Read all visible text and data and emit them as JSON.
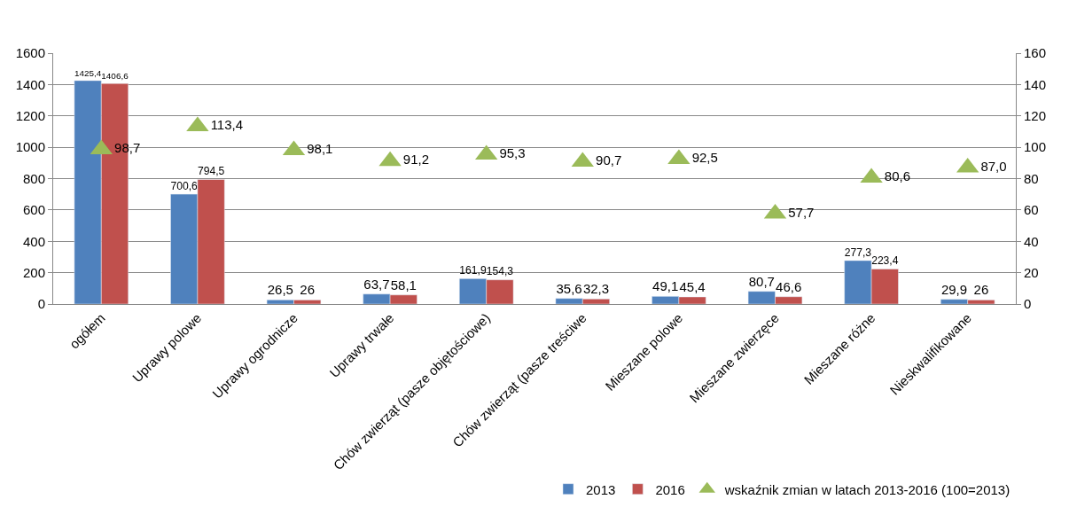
{
  "chart_data": {
    "type": "bar",
    "categories": [
      "ogółem",
      "Uprawy polowe",
      "Uprawy ogrodnicze",
      "Uprawy trwałe",
      "Chów zwierząt (pasze objętościowe)",
      "Chów zwierząt (pasze treściwe",
      "Mieszane polowe",
      "Mieszane zwierzęce",
      "Mieszane różne",
      "Nieskwalifikowane"
    ],
    "series": [
      {
        "name": "2013",
        "color": "#4f81bd",
        "values": [
          1425.4,
          700.6,
          26.5,
          63.7,
          161.9,
          35.6,
          49.1,
          80.7,
          277.3,
          29.9
        ],
        "value_labels": [
          "1425,4",
          "700,6",
          "26,5",
          "63,7",
          "161,9",
          "35,6",
          "49,1",
          "80,7",
          "277,3",
          "29,9"
        ]
      },
      {
        "name": "2016",
        "color": "#c0504d",
        "values": [
          1406.6,
          794.5,
          26,
          58.1,
          154.3,
          32.3,
          45.4,
          46.6,
          223.4,
          26
        ],
        "value_labels": [
          "1406,6",
          "794,5",
          "26",
          "58,1",
          "154,3",
          "32,3",
          "45,4",
          "46,6",
          "223,4",
          "26"
        ]
      },
      {
        "name": "wskaźnik zmian w latach 2013-2016 (100=2013)",
        "type": "scatter",
        "axis": "y2",
        "marker": "triangle",
        "color": "#9bbb59",
        "values": [
          98.7,
          113.4,
          98.1,
          91.2,
          95.3,
          90.7,
          92.5,
          57.7,
          80.6,
          87.0
        ],
        "value_labels": [
          "98,7",
          "113,4",
          "98,1",
          "91,2",
          "95,3",
          "90,7",
          "92,5",
          "57,7",
          "80,6",
          "87,0"
        ]
      }
    ],
    "ylim": [
      0,
      1600
    ],
    "yticks": [
      0,
      200,
      400,
      600,
      800,
      1000,
      1200,
      1400,
      1600
    ],
    "y2lim": [
      0,
      160
    ],
    "y2ticks": [
      0,
      20,
      40,
      60,
      80,
      100,
      120,
      140,
      160
    ],
    "grid": "y",
    "legend": "bottom right"
  }
}
